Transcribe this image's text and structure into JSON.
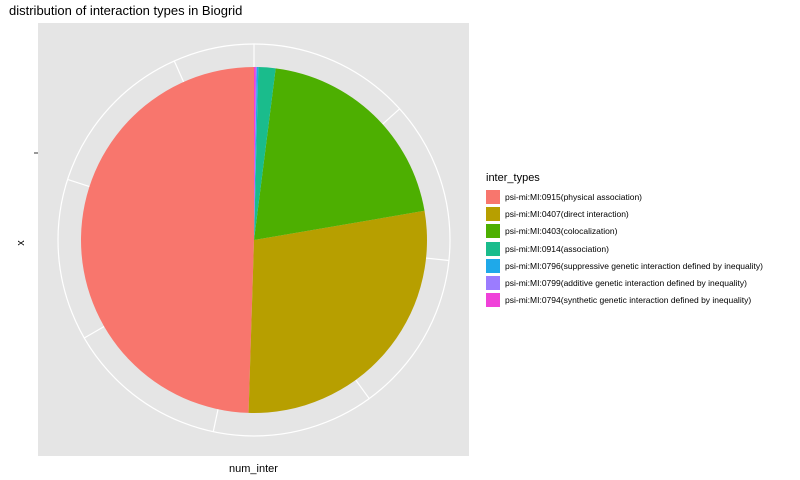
{
  "chart_data": {
    "type": "pie",
    "title": "distribution of interaction types in Biogrid",
    "xlabel": "num_inter",
    "ylabel": "x",
    "legend_title": "inter_types",
    "legend_position": "right",
    "grid": true,
    "slices": [
      {
        "label": "psi-mi:MI:0915(physical association)",
        "value": 49.5,
        "color": "#F8766D"
      },
      {
        "label": "psi-mi:MI:0407(direct interaction)",
        "value": 28.2,
        "color": "#B79F00"
      },
      {
        "label": "psi-mi:MI:0403(colocalization)",
        "value": 20.3,
        "color": "#4DAF01"
      },
      {
        "label": "psi-mi:MI:0914(association)",
        "value": 1.6,
        "color": "#1ABC8C"
      },
      {
        "label": "psi-mi:MI:0796(suppressive genetic interaction defined by inequality)",
        "value": 0.15,
        "color": "#1FA9E9"
      },
      {
        "label": "psi-mi:MI:0799(additive genetic interaction defined by inequality)",
        "value": 0.1,
        "color": "#9B7CFF"
      },
      {
        "label": "psi-mi:MI:0794(synthetic genetic interaction defined by inequality)",
        "value": 0.15,
        "color": "#F041D9"
      }
    ]
  }
}
